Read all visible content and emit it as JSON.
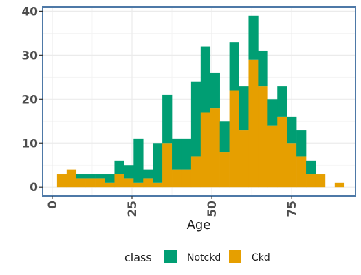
{
  "chart_data": {
    "type": "bar",
    "stacked": true,
    "xlabel": "Age",
    "ylabel": "",
    "xlim": [
      -3,
      95
    ],
    "ylim": [
      -2,
      41
    ],
    "xticks": [
      "0",
      "25",
      "50",
      "75"
    ],
    "yticks": [
      "0",
      "10",
      "20",
      "30",
      "40"
    ],
    "grid": true,
    "legend_position": "bottom",
    "legend_title": "class",
    "bin_width": 3,
    "x": [
      3,
      6,
      9,
      12,
      15,
      18,
      21,
      24,
      27,
      30,
      33,
      36,
      39,
      42,
      45,
      48,
      51,
      54,
      57,
      60,
      63,
      66,
      69,
      72,
      75,
      78,
      81,
      84,
      87,
      90
    ],
    "series": [
      {
        "name": "Ckd",
        "color": "#E69F00",
        "values": [
          3,
          4,
          2,
          2,
          2,
          1,
          3,
          2,
          1,
          2,
          1,
          10,
          4,
          4,
          7,
          17,
          18,
          8,
          22,
          13,
          29,
          23,
          14,
          16,
          10,
          7,
          3,
          3,
          0,
          1
        ]
      },
      {
        "name": "Notckd",
        "color": "#009E73",
        "values": [
          0,
          0,
          1,
          1,
          1,
          2,
          3,
          3,
          10,
          2,
          9,
          11,
          7,
          7,
          17,
          15,
          8,
          7,
          11,
          10,
          10,
          8,
          6,
          7,
          6,
          6,
          3,
          0,
          0,
          0
        ]
      }
    ]
  }
}
